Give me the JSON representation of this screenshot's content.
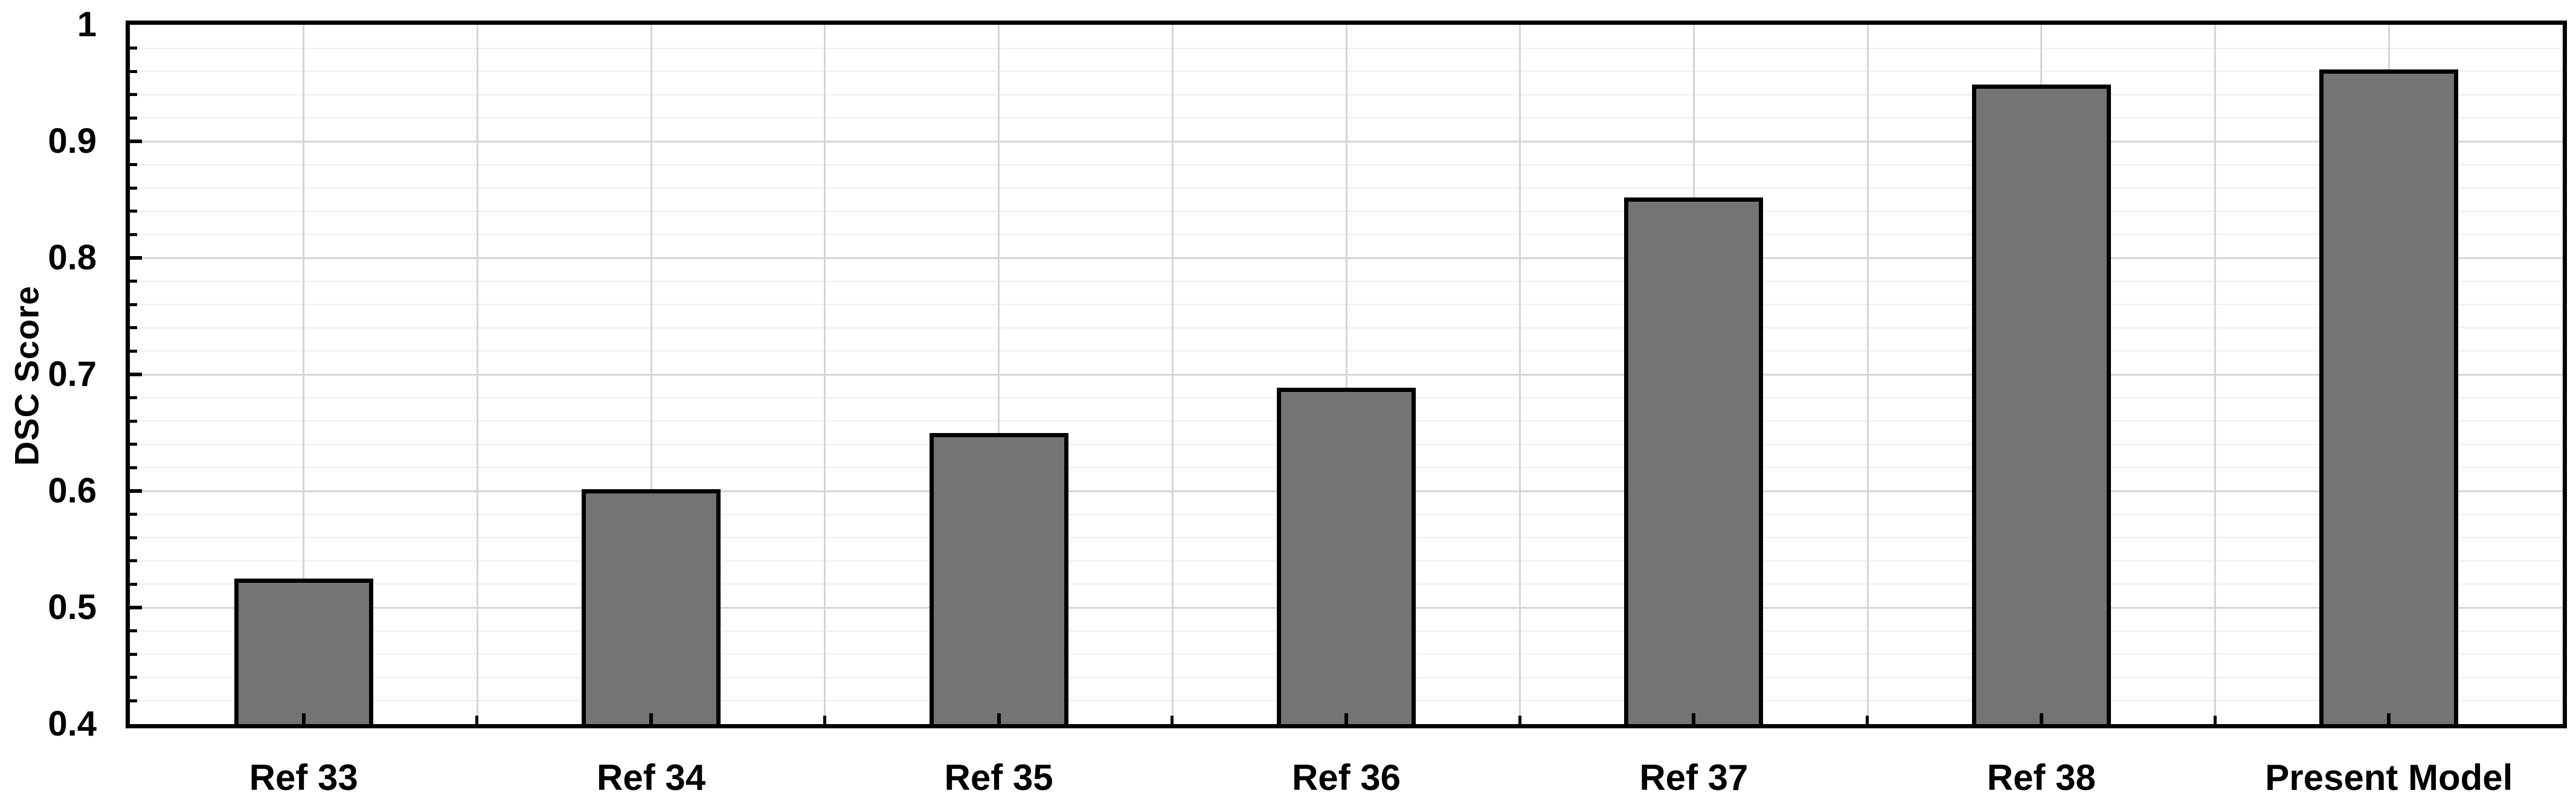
{
  "chart_data": {
    "type": "bar",
    "title": "",
    "xlabel": "",
    "ylabel": "DSC Score",
    "categories": [
      "Ref 33",
      "Ref 34",
      "Ref 35",
      "Ref 36",
      "Ref 37",
      "Ref 38",
      "Present Model"
    ],
    "values": [
      0.523,
      0.6,
      0.648,
      0.687,
      0.85,
      0.947,
      0.96
    ],
    "ylim": [
      0.4,
      1.0
    ],
    "ytick_values": [
      0.4,
      0.5,
      0.6,
      0.7,
      0.8,
      0.9,
      1.0
    ],
    "ytick_labels": [
      "0.4",
      "0.5",
      "0.6",
      "0.7",
      "0.8",
      "0.9",
      "1"
    ],
    "y_minor_step": 0.02,
    "grid": "major and minor, horizontal and vertical, on",
    "legend_position": "none",
    "bar_fill_color": "#747474",
    "bar_edge_color": "#000000",
    "axis_color": "#000000",
    "grid_major_color": "#d5d5d5",
    "grid_minor_color": "#efefef"
  }
}
